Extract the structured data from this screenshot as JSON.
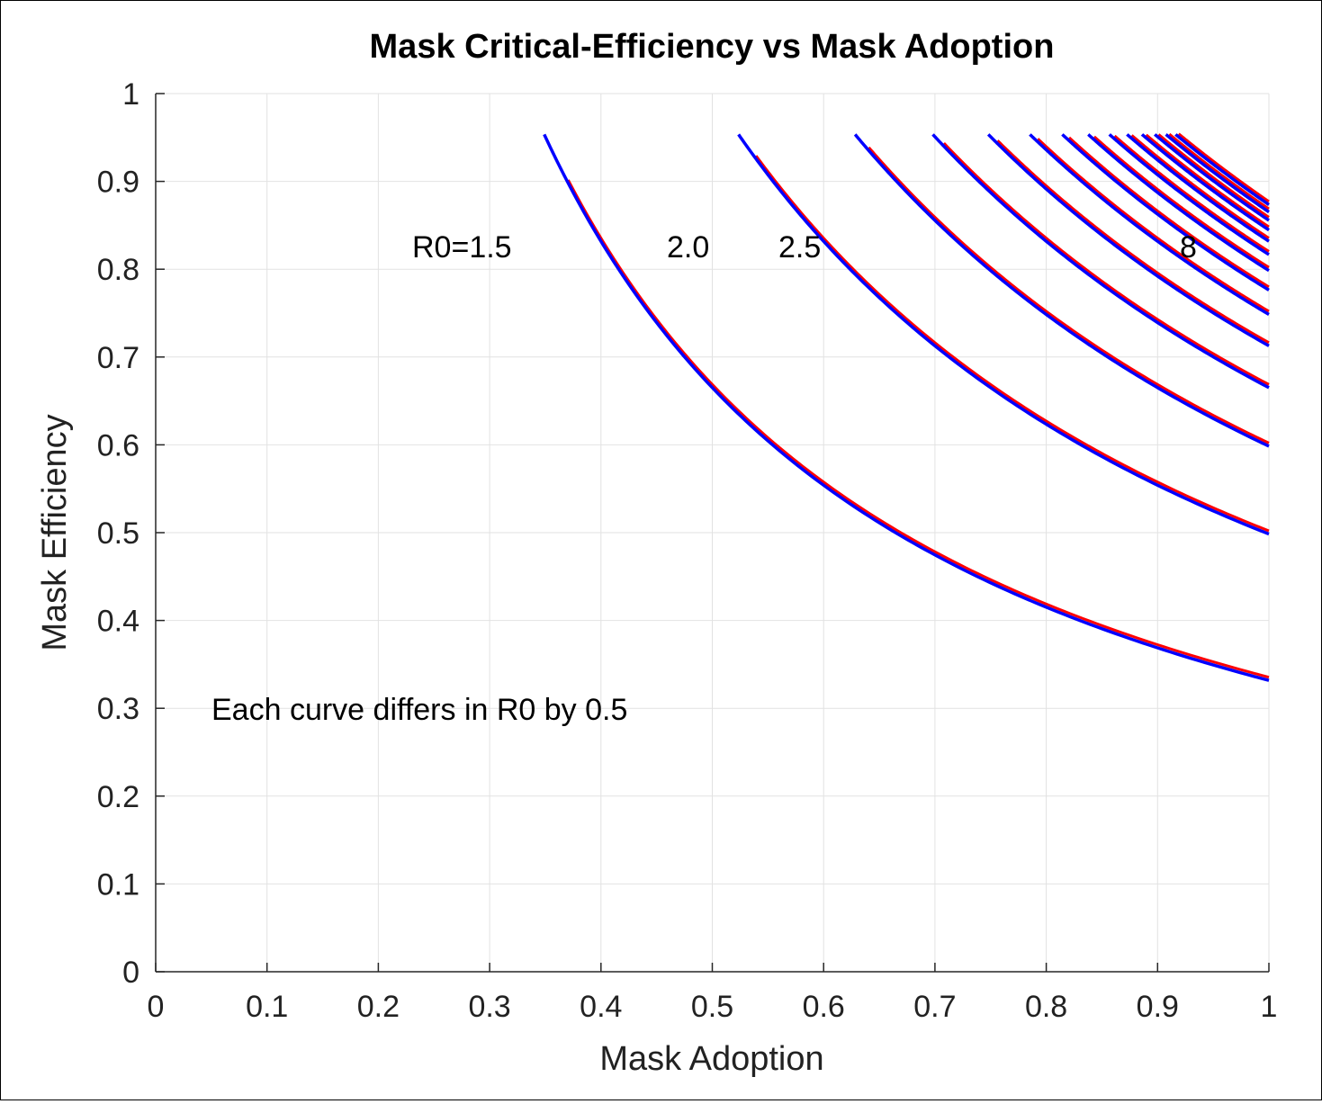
{
  "chart_data": {
    "type": "line",
    "title": "Mask Critical-Efficiency vs Mask Adoption",
    "xlabel": "Mask Adoption",
    "ylabel": "Mask Efficiency",
    "xlim": [
      0,
      1
    ],
    "ylim": [
      0,
      1
    ],
    "grid": true,
    "x_ticks": [
      "0",
      "0.1",
      "0.2",
      "0.3",
      "0.4",
      "0.5",
      "0.6",
      "0.7",
      "0.8",
      "0.9",
      "1"
    ],
    "y_ticks": [
      "0",
      "0.1",
      "0.2",
      "0.3",
      "0.4",
      "0.5",
      "0.6",
      "0.7",
      "0.8",
      "0.9",
      "1"
    ],
    "r0_values": [
      1.5,
      2.0,
      2.5,
      3.0,
      3.5,
      4.0,
      4.5,
      5.0,
      5.5,
      6.0,
      6.5,
      7.0,
      7.5,
      8.0
    ],
    "series_colors": {
      "outer": "#0000ff",
      "inner": "#ff0000"
    },
    "annotations": {
      "r0_first": "R0=1.5",
      "r0_second": "2.0",
      "r0_third": "2.5",
      "r0_last": "8",
      "step_note": "Each curve differs in R0 by 0.5"
    }
  }
}
